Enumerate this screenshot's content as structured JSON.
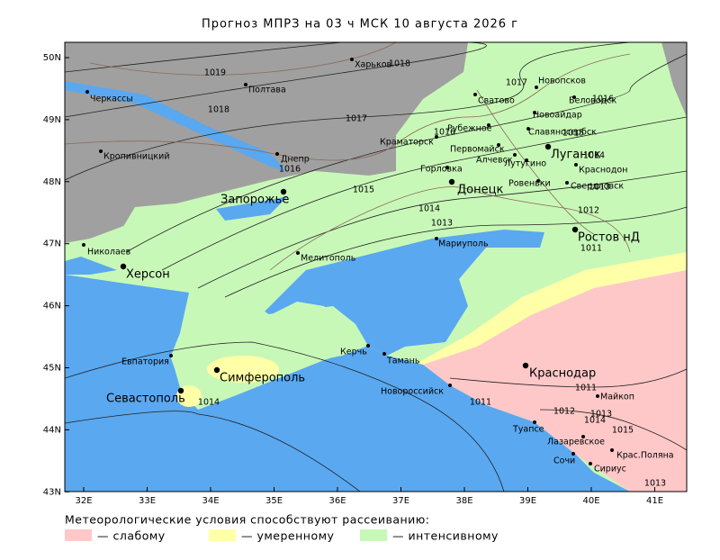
{
  "header": {
    "title": "Прогноз МПРЗ на 03 ч МСК 10 августа 2026 г"
  },
  "map": {
    "lon_labels": [
      "32E",
      "33E",
      "34E",
      "35E",
      "36E",
      "37E",
      "38E",
      "39E",
      "40E",
      "41E"
    ],
    "lat_labels": [
      "50N",
      "49N",
      "48N",
      "47N",
      "46N",
      "45N",
      "44N",
      "43N"
    ],
    "cities": [
      "Харьков",
      "Черкассы",
      "Полтава",
      "Кропивницкий",
      "Днепр",
      "Запорожье",
      "Николаев",
      "Херсон",
      "Мелитополь",
      "Мариуполь",
      "Евпатория",
      "Симферополь",
      "Севастополь",
      "Керчь",
      "Тамань",
      "Новороссийск",
      "Краснодар",
      "Туапсе",
      "Сочи",
      "Сириус",
      "Лазаревское",
      "Майкоп",
      "Крас.Поляна",
      "Донецк",
      "Горловка",
      "Луганск",
      "Ростов нД",
      "Краматорск",
      "Рубежное",
      "Сватово",
      "Новопсков",
      "Беловодск",
      "Новоайдар",
      "Славяносербск",
      "Первомайск",
      "Алчевск",
      "Лутугино",
      "Краснодон",
      "Ровеньки",
      "Свердловск"
    ],
    "isobar_labels": [
      "1019",
      "1018",
      "1018",
      "1017",
      "1017",
      "1016",
      "1016",
      "1015",
      "1014",
      "1016",
      "1015",
      "1014",
      "1013",
      "1013",
      "1012",
      "1011",
      "1014",
      "1011",
      "1011",
      "1012",
      "1013",
      "1014",
      "1015",
      "1013"
    ]
  },
  "legend": {
    "caption": "Метеорологические условия способствуют рассеиванию:",
    "items": [
      {
        "label": "— слабому",
        "color": "#ffc8c8"
      },
      {
        "label": "— умеренному",
        "color": "#ffffa8"
      },
      {
        "label": "— интенсивному",
        "color": "#c8f8b8"
      }
    ]
  }
}
